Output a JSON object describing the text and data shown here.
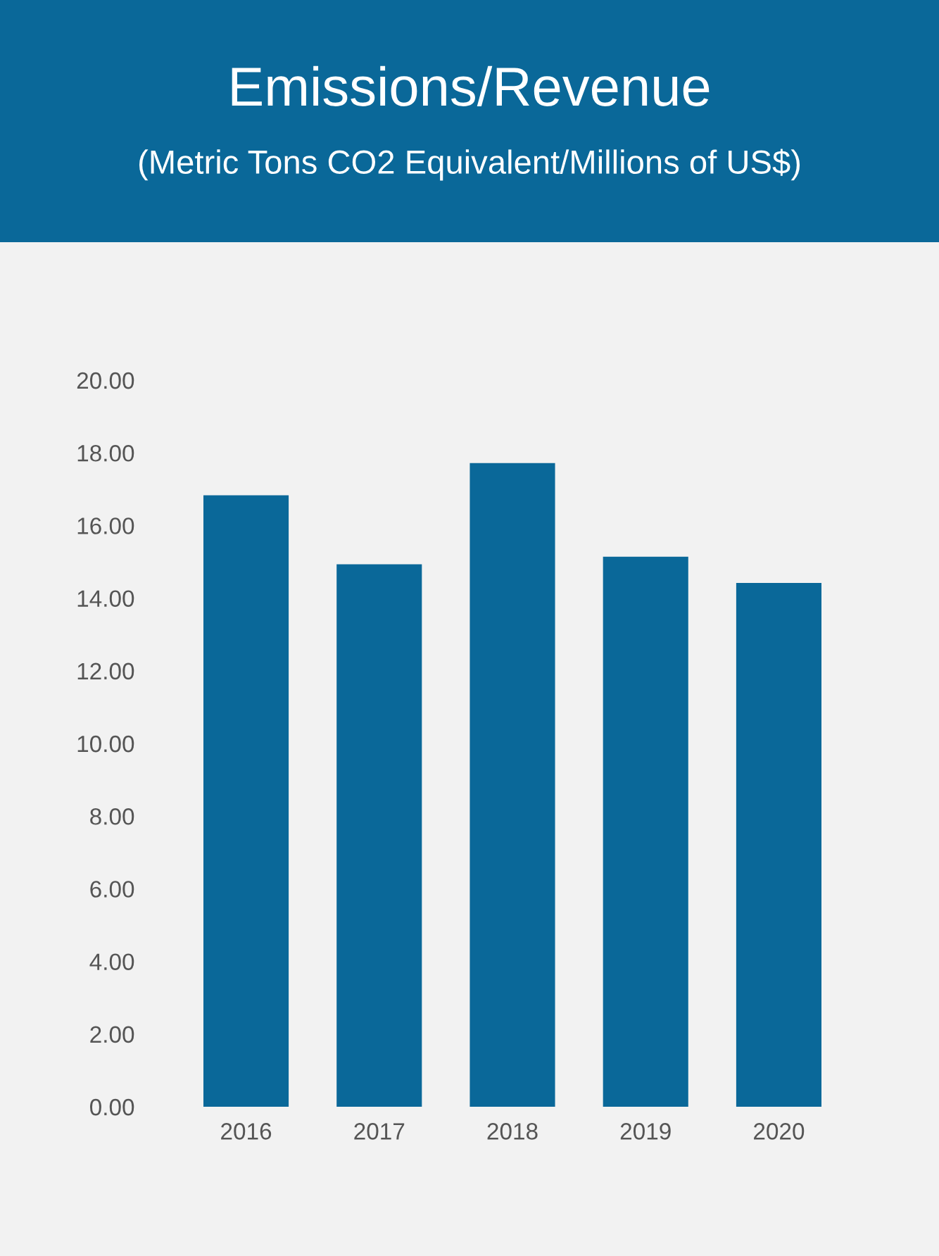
{
  "chart_data": {
    "type": "bar",
    "title": "Emissions/Revenue",
    "subtitle": "(Metric Tons CO2 Equivalent/Millions of US$)",
    "categories": [
      "2016",
      "2017",
      "2018",
      "2019",
      "2020"
    ],
    "values": [
      16.83,
      14.93,
      17.72,
      15.14,
      14.42
    ],
    "color": "#0a6899",
    "ylim": [
      0,
      20
    ],
    "yticks": [
      {
        "value": 0,
        "label": "0.00"
      },
      {
        "value": 2,
        "label": "2.00"
      },
      {
        "value": 4,
        "label": "4.00"
      },
      {
        "value": 6,
        "label": "6.00"
      },
      {
        "value": 8,
        "label": "8.00"
      },
      {
        "value": 10,
        "label": "10.00"
      },
      {
        "value": 12,
        "label": "12.00"
      },
      {
        "value": 14,
        "label": "14.00"
      },
      {
        "value": 16,
        "label": "16.00"
      },
      {
        "value": 18,
        "label": "18.00"
      },
      {
        "value": 20,
        "label": "20.00"
      }
    ],
    "grid": false,
    "legend": false
  }
}
